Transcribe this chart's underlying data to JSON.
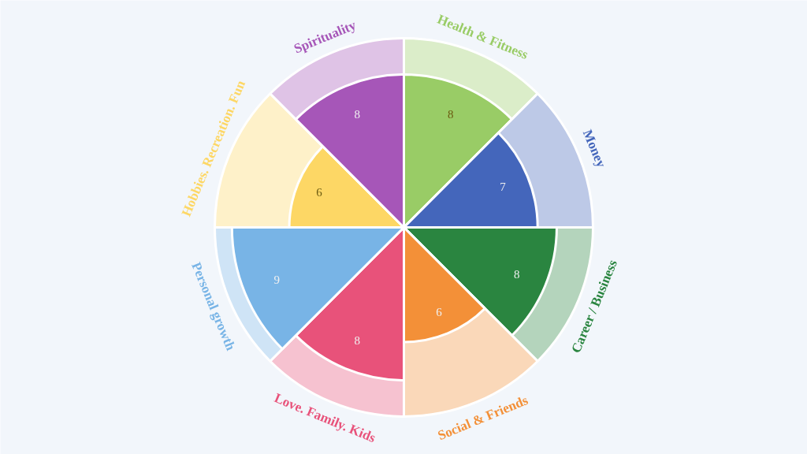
{
  "chart_data": {
    "type": "other",
    "categories": [
      "Health & Fitness",
      "Money",
      "Career / Business",
      "Social & Friends",
      "Love. Family. Kids",
      "Personal growth",
      "Hobbies. Recreation. Fun",
      "Spirituality"
    ],
    "values": [
      8,
      7,
      8,
      6,
      8,
      9,
      6,
      8
    ],
    "colors": [
      "#99cc66",
      "#4466bb",
      "#2a8540",
      "#f39038",
      "#e8527a",
      "#78b4e6",
      "#fdd765",
      "#a656b8"
    ],
    "data_labels": true
  }
}
